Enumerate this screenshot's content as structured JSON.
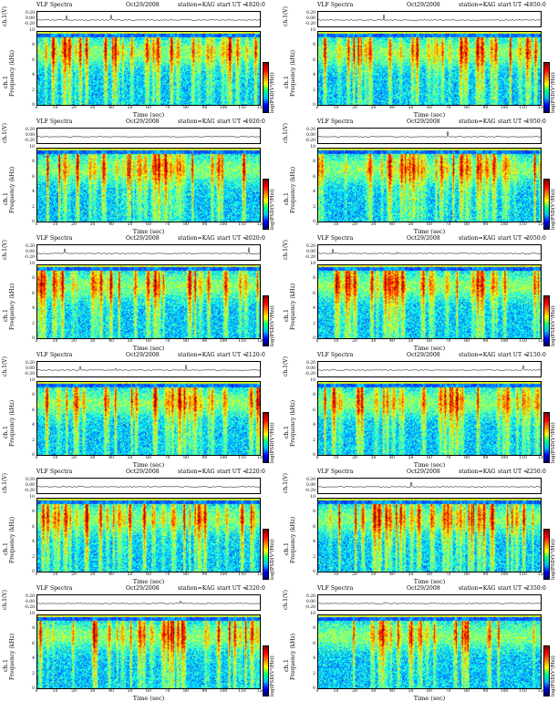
{
  "chart_data": {
    "type": "heatmap",
    "date": "Oct29/2008",
    "station": "station=KAG",
    "title_prefix": "VLF Spectra",
    "start_prefix": "start  UT =",
    "panels": [
      {
        "start_ut": "1820:0"
      },
      {
        "start_ut": "1850:0"
      },
      {
        "start_ut": "1920:0"
      },
      {
        "start_ut": "1950:0"
      },
      {
        "start_ut": "2020:0"
      },
      {
        "start_ut": "2050:0"
      },
      {
        "start_ut": "2120:0"
      },
      {
        "start_ut": "2150:0"
      },
      {
        "start_ut": "2220:0"
      },
      {
        "start_ut": "2250:0"
      },
      {
        "start_ut": "2320:0"
      },
      {
        "start_ut": "2350:0"
      }
    ],
    "xlabel": "Time  (sec)",
    "ylabel_wave": "ch.1(V)",
    "ylabel_spec_channel": "ch.1",
    "ylabel_spec": "Frequency  (kHz)",
    "colorbar_label": "log(PSD(V²/Hz))",
    "xlim": [
      0,
      120
    ],
    "xticks": [
      "0",
      "10",
      "20",
      "30",
      "40",
      "50",
      "60",
      "70",
      "80",
      "90",
      "100",
      "110",
      "120"
    ],
    "ylim": [
      0,
      10
    ],
    "yticks": [
      "0",
      "2",
      "4",
      "6",
      "8",
      "10"
    ],
    "wave_ticks": [
      "0.20",
      "0.00",
      "-0.20"
    ]
  }
}
